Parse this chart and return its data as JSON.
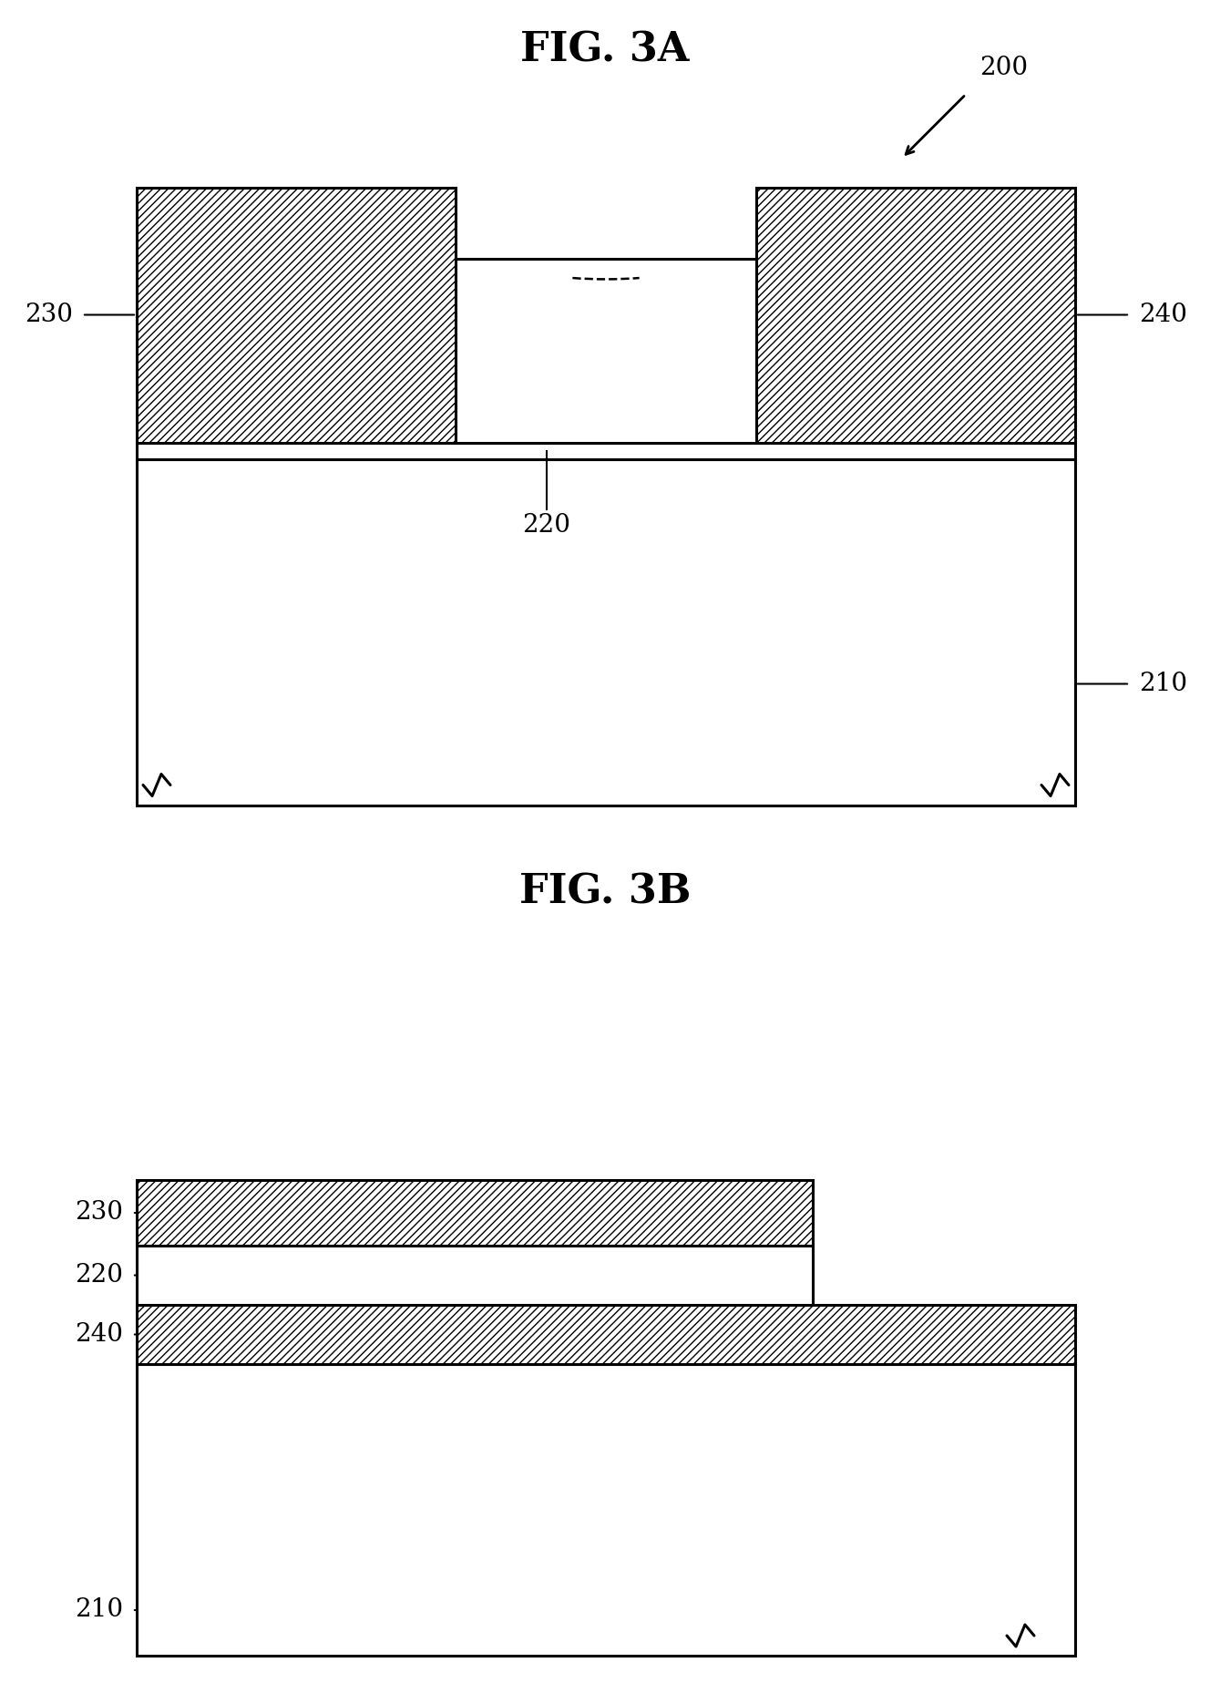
{
  "fig_title_3a": "FIG. 3A",
  "fig_title_3b": "FIG. 3B",
  "bg_color": "#ffffff",
  "line_color": "#000000",
  "hatch_pattern_fine": "////",
  "hatch_pattern_coarse": "////",
  "label_200": "200",
  "label_210": "210",
  "label_220": "220",
  "label_230": "230",
  "label_240": "240",
  "title_fontsize": 32,
  "label_fontsize": 20
}
